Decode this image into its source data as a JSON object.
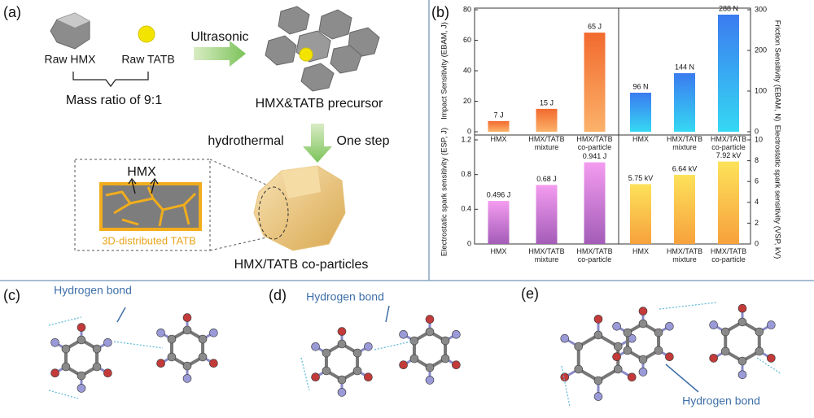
{
  "panel_a": {
    "label": "(a)",
    "raw_hmx": "Raw HMX",
    "raw_tatb": "Raw TATB",
    "ratio": "Mass ratio of 9:1",
    "ultrasonic": "Ultrasonic",
    "precursor": "HMX&TATB precursor",
    "hydrothermal": "hydrothermal",
    "one_step": "One step",
    "inset_hmx": "HMX",
    "inset_tatb": "3D-distributed TATB",
    "product": "HMX/TATB co-particles"
  },
  "panel_b": {
    "label": "(b)"
  },
  "chart_data": [
    {
      "type": "bar",
      "ylabel": "Impact Sensitivity (EBAM, J)",
      "categories": [
        "HMX",
        "HMX/TATB mixture",
        "HMX/TATB co-particle"
      ],
      "values": [
        7,
        15,
        65
      ],
      "value_labels": [
        "7 J",
        "15 J",
        "65 J"
      ],
      "color": [
        "#f26a2e",
        "#fbb26a"
      ],
      "ylim": [
        0,
        80
      ],
      "yticks": [
        0,
        20,
        40,
        60,
        80
      ],
      "axis_side": "left"
    },
    {
      "type": "bar",
      "ylabel": "Friction Sensitivity (EBAM, N)",
      "categories": [
        "HMX",
        "HMX/TATB mixture",
        "HMX/TATB co-particle"
      ],
      "values": [
        96,
        144,
        288
      ],
      "value_labels": [
        "96 N",
        "144 N",
        "288 N"
      ],
      "color": [
        "#3b7bf0",
        "#35d8f3"
      ],
      "ylim": [
        0,
        300
      ],
      "yticks": [
        0,
        100,
        200,
        300
      ],
      "axis_side": "right"
    },
    {
      "type": "bar",
      "ylabel": "Electrostatic spark sensitivity (ESP, J)",
      "categories": [
        "HMX",
        "HMX/TATB mixture",
        "HMX/TATB co-particle"
      ],
      "values": [
        0.496,
        0.68,
        0.941
      ],
      "value_labels": [
        "0.496 J",
        "0.68 J",
        "0.941 J"
      ],
      "color": [
        "#f49cf0",
        "#a35cb8"
      ],
      "ylim": [
        0,
        1.2
      ],
      "yticks": [
        0,
        0.4,
        0.8,
        1.2
      ],
      "axis_side": "left"
    },
    {
      "type": "bar",
      "ylabel": "Electrostatic spark sensitivity (VSP, kV)",
      "categories": [
        "HMX",
        "HMX/TATB mixture",
        "HMX/TATB co-particle"
      ],
      "values": [
        5.75,
        6.64,
        7.92
      ],
      "value_labels": [
        "5.75 kV",
        "6.64 kV",
        "7.92 kV"
      ],
      "color": [
        "#fde25a",
        "#f7a13c"
      ],
      "ylim": [
        0,
        10
      ],
      "yticks": [
        0,
        2,
        4,
        6,
        8,
        10
      ],
      "axis_side": "right"
    }
  ],
  "panel_c": {
    "label": "(c)",
    "annotation": "Hydrogen bond"
  },
  "panel_d": {
    "label": "(d)",
    "annotation": "Hydrogen bond"
  },
  "panel_e": {
    "label": "(e)",
    "annotation": "Hydrogen bond"
  }
}
